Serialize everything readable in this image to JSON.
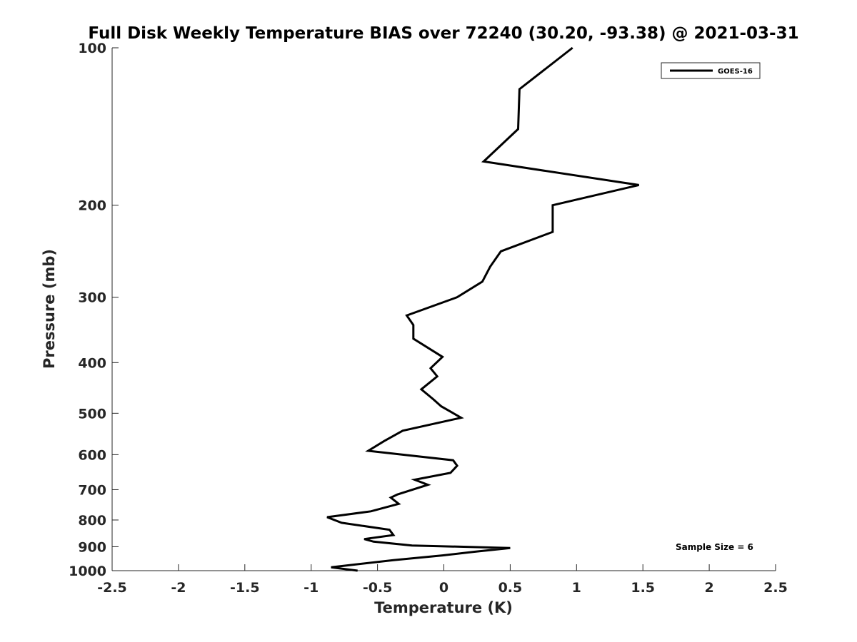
{
  "chart_data": {
    "type": "line",
    "title": "Full Disk Weekly Temperature BIAS over 72240 (30.20, -93.38) @ 2021-03-31",
    "xlabel": "Temperature (K)",
    "ylabel": "Pressure (mb)",
    "xlim": [
      -2.5,
      2.5
    ],
    "ylim": [
      100,
      1000
    ],
    "y_scale": "log",
    "y_reversed": true,
    "x_ticks": [
      -2.5,
      -2,
      -1.5,
      -1,
      -0.5,
      0,
      0.5,
      1,
      1.5,
      2,
      2.5
    ],
    "x_tick_labels": [
      "-2.5",
      "-2",
      "-1.5",
      "-1",
      "-0.5",
      "0",
      "0.5",
      "1",
      "1.5",
      "2",
      "2.5"
    ],
    "y_ticks": [
      100,
      200,
      300,
      400,
      500,
      600,
      700,
      800,
      900,
      1000
    ],
    "y_tick_labels": [
      "100",
      "200",
      "300",
      "400",
      "500",
      "600",
      "700",
      "800",
      "900",
      "1000"
    ],
    "grid": false,
    "legend_position": "top-right",
    "annotation": "Sample Size = 6",
    "series": [
      {
        "name": "GOES-16",
        "color": "#000000",
        "points": [
          [
            0.97,
            100
          ],
          [
            0.57,
            120
          ],
          [
            0.56,
            143
          ],
          [
            0.3,
            165
          ],
          [
            1.47,
            183
          ],
          [
            0.82,
            200
          ],
          [
            0.82,
            225
          ],
          [
            0.43,
            245
          ],
          [
            0.35,
            262
          ],
          [
            0.29,
            280
          ],
          [
            0.1,
            300
          ],
          [
            -0.28,
            325
          ],
          [
            -0.23,
            339
          ],
          [
            -0.23,
            360
          ],
          [
            -0.01,
            390
          ],
          [
            -0.1,
            410
          ],
          [
            -0.05,
            425
          ],
          [
            -0.17,
            450
          ],
          [
            -0.08,
            470
          ],
          [
            -0.02,
            485
          ],
          [
            0.13,
            510
          ],
          [
            -0.31,
            540
          ],
          [
            -0.45,
            565
          ],
          [
            -0.57,
            590
          ],
          [
            0.07,
            615
          ],
          [
            0.1,
            630
          ],
          [
            0.05,
            650
          ],
          [
            -0.22,
            670
          ],
          [
            -0.12,
            685
          ],
          [
            -0.35,
            715
          ],
          [
            -0.4,
            725
          ],
          [
            -0.34,
            745
          ],
          [
            -0.55,
            770
          ],
          [
            -0.88,
            790
          ],
          [
            -0.77,
            810
          ],
          [
            -0.41,
            835
          ],
          [
            -0.38,
            855
          ],
          [
            -0.6,
            870
          ],
          [
            -0.53,
            880
          ],
          [
            -0.24,
            895
          ],
          [
            0.5,
            905
          ],
          [
            0.23,
            920
          ],
          [
            -0.01,
            935
          ],
          [
            -0.38,
            955
          ],
          [
            -0.85,
            985
          ],
          [
            -0.65,
            1000
          ]
        ]
      }
    ]
  }
}
